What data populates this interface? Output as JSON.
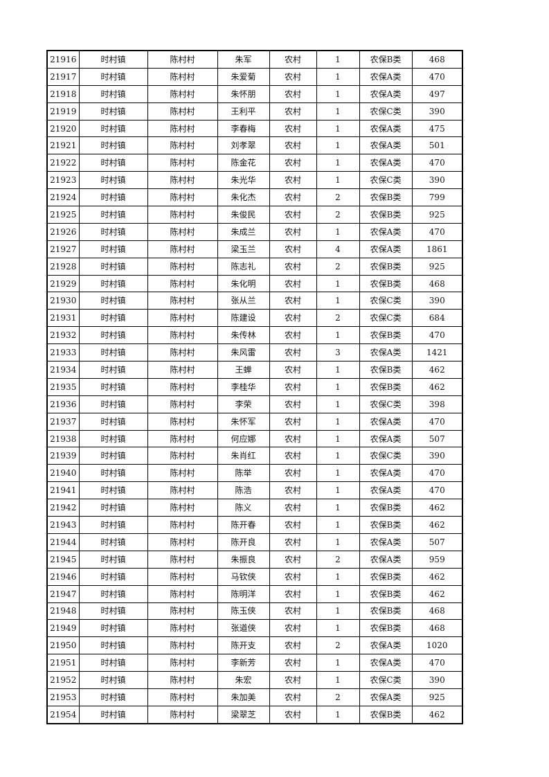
{
  "rows": [
    [
      "21916",
      "时村镇",
      "陈村村",
      "朱军",
      "农村",
      "1",
      "农保B类",
      "468"
    ],
    [
      "21917",
      "时村镇",
      "陈村村",
      "朱爱菊",
      "农村",
      "1",
      "农保A类",
      "470"
    ],
    [
      "21918",
      "时村镇",
      "陈村村",
      "朱怀朋",
      "农村",
      "1",
      "农保A类",
      "497"
    ],
    [
      "21919",
      "时村镇",
      "陈村村",
      "王利平",
      "农村",
      "1",
      "农保C类",
      "390"
    ],
    [
      "21920",
      "时村镇",
      "陈村村",
      "李春梅",
      "农村",
      "1",
      "农保A类",
      "475"
    ],
    [
      "21921",
      "时村镇",
      "陈村村",
      "刘孝翠",
      "农村",
      "1",
      "农保A类",
      "501"
    ],
    [
      "21922",
      "时村镇",
      "陈村村",
      "陈金花",
      "农村",
      "1",
      "农保A类",
      "470"
    ],
    [
      "21923",
      "时村镇",
      "陈村村",
      "朱光华",
      "农村",
      "1",
      "农保C类",
      "390"
    ],
    [
      "21924",
      "时村镇",
      "陈村村",
      "朱化杰",
      "农村",
      "2",
      "农保B类",
      "799"
    ],
    [
      "21925",
      "时村镇",
      "陈村村",
      "朱俊民",
      "农村",
      "2",
      "农保B类",
      "925"
    ],
    [
      "21926",
      "时村镇",
      "陈村村",
      "朱成兰",
      "农村",
      "1",
      "农保A类",
      "470"
    ],
    [
      "21927",
      "时村镇",
      "陈村村",
      "梁玉兰",
      "农村",
      "4",
      "农保A类",
      "1861"
    ],
    [
      "21928",
      "时村镇",
      "陈村村",
      "陈志礼",
      "农村",
      "2",
      "农保B类",
      "925"
    ],
    [
      "21929",
      "时村镇",
      "陈村村",
      "朱化明",
      "农村",
      "1",
      "农保B类",
      "468"
    ],
    [
      "21930",
      "时村镇",
      "陈村村",
      "张从兰",
      "农村",
      "1",
      "农保C类",
      "390"
    ],
    [
      "21931",
      "时村镇",
      "陈村村",
      "陈建设",
      "农村",
      "2",
      "农保C类",
      "684"
    ],
    [
      "21932",
      "时村镇",
      "陈村村",
      "朱传林",
      "农村",
      "1",
      "农保B类",
      "470"
    ],
    [
      "21933",
      "时村镇",
      "陈村村",
      "朱风雷",
      "农村",
      "3",
      "农保A类",
      "1421"
    ],
    [
      "21934",
      "时村镇",
      "陈村村",
      "王蝉",
      "农村",
      "1",
      "农保B类",
      "462"
    ],
    [
      "21935",
      "时村镇",
      "陈村村",
      "李桂华",
      "农村",
      "1",
      "农保B类",
      "462"
    ],
    [
      "21936",
      "时村镇",
      "陈村村",
      "李荣",
      "农村",
      "1",
      "农保C类",
      "398"
    ],
    [
      "21937",
      "时村镇",
      "陈村村",
      "朱怀军",
      "农村",
      "1",
      "农保A类",
      "470"
    ],
    [
      "21938",
      "时村镇",
      "陈村村",
      "何应娜",
      "农村",
      "1",
      "农保A类",
      "507"
    ],
    [
      "21939",
      "时村镇",
      "陈村村",
      "朱肖红",
      "农村",
      "1",
      "农保C类",
      "390"
    ],
    [
      "21940",
      "时村镇",
      "陈村村",
      "陈举",
      "农村",
      "1",
      "农保A类",
      "470"
    ],
    [
      "21941",
      "时村镇",
      "陈村村",
      "陈浩",
      "农村",
      "1",
      "农保A类",
      "470"
    ],
    [
      "21942",
      "时村镇",
      "陈村村",
      "陈义",
      "农村",
      "1",
      "农保B类",
      "462"
    ],
    [
      "21943",
      "时村镇",
      "陈村村",
      "陈开春",
      "农村",
      "1",
      "农保B类",
      "462"
    ],
    [
      "21944",
      "时村镇",
      "陈村村",
      "陈开良",
      "农村",
      "1",
      "农保A类",
      "507"
    ],
    [
      "21945",
      "时村镇",
      "陈村村",
      "朱振良",
      "农村",
      "2",
      "农保A类",
      "959"
    ],
    [
      "21946",
      "时村镇",
      "陈村村",
      "马钦侠",
      "农村",
      "1",
      "农保B类",
      "462"
    ],
    [
      "21947",
      "时村镇",
      "陈村村",
      "陈明洋",
      "农村",
      "1",
      "农保B类",
      "462"
    ],
    [
      "21948",
      "时村镇",
      "陈村村",
      "陈玉侠",
      "农村",
      "1",
      "农保B类",
      "468"
    ],
    [
      "21949",
      "时村镇",
      "陈村村",
      "张道侠",
      "农村",
      "1",
      "农保B类",
      "468"
    ],
    [
      "21950",
      "时村镇",
      "陈村村",
      "陈开支",
      "农村",
      "2",
      "农保A类",
      "1020"
    ],
    [
      "21951",
      "时村镇",
      "陈村村",
      "李新芳",
      "农村",
      "1",
      "农保A类",
      "470"
    ],
    [
      "21952",
      "时村镇",
      "陈村村",
      "朱宏",
      "农村",
      "1",
      "农保C类",
      "390"
    ],
    [
      "21953",
      "时村镇",
      "陈村村",
      "朱加美",
      "农村",
      "2",
      "农保A类",
      "925"
    ],
    [
      "21954",
      "时村镇",
      "陈村村",
      "梁翠芝",
      "农村",
      "1",
      "农保B类",
      "462"
    ]
  ]
}
